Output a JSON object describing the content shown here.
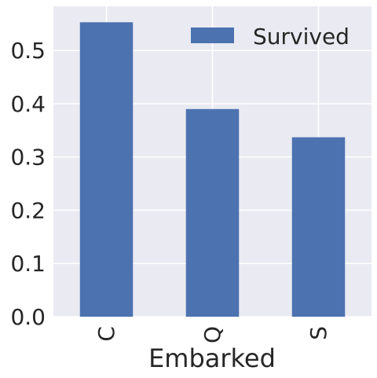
{
  "chart_data": {
    "type": "bar",
    "categories": [
      "C",
      "Q",
      "S"
    ],
    "series": [
      {
        "name": "Survived",
        "values": [
          0.553,
          0.39,
          0.337
        ]
      }
    ],
    "xlabel": "Embarked",
    "ylabel": "",
    "ylim": [
      0,
      0.583
    ],
    "yticks": [
      0.0,
      0.1,
      0.2,
      0.3,
      0.4,
      0.5
    ],
    "ytick_labels": [
      "0.0",
      "0.1",
      "0.2",
      "0.3",
      "0.4",
      "0.5"
    ],
    "grid": true,
    "legend_position": "top-right",
    "colors": {
      "bar": "#4C72B0",
      "plot_background": "#EAEAF2",
      "grid": "#ffffff",
      "text": "#262626"
    }
  }
}
